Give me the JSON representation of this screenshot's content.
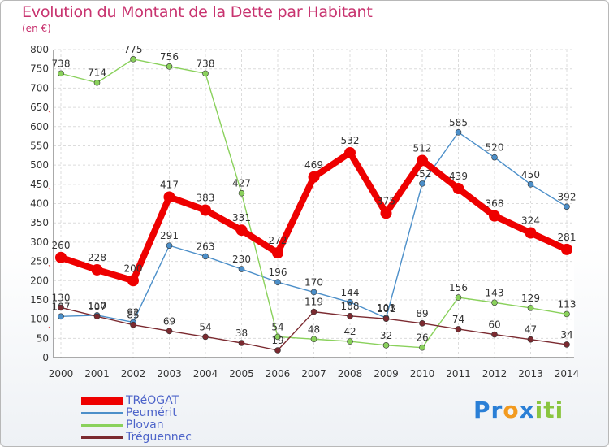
{
  "title": "Evolution du Montant de la Dette par Habitant",
  "unit": "(en €)",
  "logo": {
    "parts": [
      "Pr",
      "o",
      "x",
      "iti"
    ],
    "colors": [
      "#2a7fd6",
      "#f29a1f",
      "#2a7fd6",
      "#8ac53f"
    ]
  },
  "chart_data": {
    "type": "line",
    "x": [
      "2000",
      "2001",
      "2002",
      "2003",
      "2004",
      "2005",
      "2006",
      "2007",
      "2008",
      "2009",
      "2010",
      "2011",
      "2012",
      "2013",
      "2014"
    ],
    "ylim": [
      0,
      800
    ],
    "yticks": [
      0,
      50,
      100,
      150,
      200,
      250,
      300,
      350,
      400,
      450,
      500,
      550,
      600,
      650,
      700,
      750,
      800
    ],
    "grid": true,
    "legend_position": "bottom-left",
    "series": [
      {
        "name": "TRéOGAT",
        "color": "#ee0000",
        "values": [
          260,
          228,
          200,
          417,
          383,
          331,
          272,
          469,
          532,
          375,
          512,
          439,
          368,
          324,
          281
        ]
      },
      {
        "name": "Peumérit",
        "color": "#4c8fc9",
        "values": [
          107,
          110,
          92,
          291,
          263,
          230,
          196,
          170,
          144,
          103,
          452,
          585,
          520,
          450,
          392
        ]
      },
      {
        "name": "Plovan",
        "color": "#8ad15c",
        "values": [
          738,
          714,
          775,
          756,
          738,
          427,
          54,
          48,
          42,
          32,
          26,
          156,
          143,
          129,
          113
        ]
      },
      {
        "name": "Tréguennec",
        "color": "#7b2a30",
        "values": [
          130,
          107,
          85,
          69,
          54,
          38,
          19,
          119,
          108,
          101,
          89,
          74,
          60,
          47,
          34
        ]
      }
    ]
  }
}
